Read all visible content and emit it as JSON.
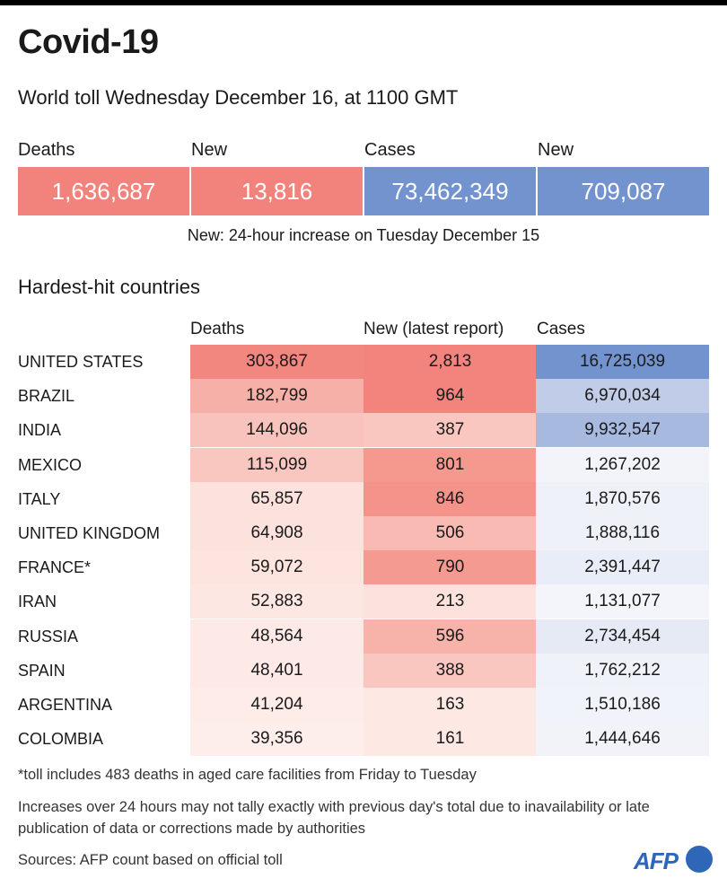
{
  "title": "Covid-19",
  "subtitle": "World toll Wednesday December 16, at 1100 GMT",
  "summary": [
    {
      "label": "Deaths",
      "value": "1,636,687",
      "color": "#f2837c"
    },
    {
      "label": "New",
      "value": "13,816",
      "color": "#f2837c"
    },
    {
      "label": "Cases",
      "value": "73,462,349",
      "color": "#7393cf"
    },
    {
      "label": "New",
      "value": "709,087",
      "color": "#7393cf"
    }
  ],
  "summary_note": "New: 24-hour increase on Tuesday December 15",
  "section_title": "Hardest-hit countries",
  "chart_data": {
    "type": "table",
    "title": "Hardest-hit countries",
    "columns": [
      "Deaths",
      "New (latest report)",
      "Cases"
    ],
    "rows": [
      {
        "country": "UNITED STATES",
        "deaths": "303,867",
        "new": "2,813",
        "cases": "16,725,039",
        "colors": [
          "#f2877f",
          "#f2847d",
          "#7393cf"
        ]
      },
      {
        "country": "BRAZIL",
        "deaths": "182,799",
        "new": "964",
        "cases": "6,970,034",
        "colors": [
          "#f6b0a7",
          "#f2847d",
          "#c1cce9"
        ]
      },
      {
        "country": "INDIA",
        "deaths": "144,096",
        "new": "387",
        "cases": "9,932,547",
        "colors": [
          "#f8c3bc",
          "#f9c7c0",
          "#a8b9e0"
        ]
      },
      {
        "country": "MEXICO",
        "deaths": "115,099",
        "new": "801",
        "cases": "1,267,202",
        "colors": [
          "#f9c7c0",
          "#f5998f",
          "#f2f4fa"
        ]
      },
      {
        "country": "ITALY",
        "deaths": "65,857",
        "new": "846",
        "cases": "1,870,576",
        "colors": [
          "#fce1dc",
          "#f4938a",
          "#eef1f8"
        ]
      },
      {
        "country": "UNITED KINGDOM",
        "deaths": "64,908",
        "new": "506",
        "cases": "1,888,116",
        "colors": [
          "#fce2dd",
          "#f8bab2",
          "#eef1f8"
        ]
      },
      {
        "country": "FRANCE*",
        "deaths": "59,072",
        "new": "790",
        "cases": "2,391,447",
        "colors": [
          "#fde4df",
          "#f59a91",
          "#e9edf7"
        ]
      },
      {
        "country": "IRAN",
        "deaths": "52,883",
        "new": "213",
        "cases": "1,131,077",
        "colors": [
          "#fde7e3",
          "#fce1dc",
          "#f3f5fa"
        ]
      },
      {
        "country": "RUSSIA",
        "deaths": "48,564",
        "new": "596",
        "cases": "2,734,454",
        "colors": [
          "#fde9e5",
          "#f7b3aa",
          "#e5eaf5"
        ]
      },
      {
        "country": "SPAIN",
        "deaths": "48,401",
        "new": "388",
        "cases": "1,762,212",
        "colors": [
          "#fde9e5",
          "#f9c7c0",
          "#eff2f9"
        ]
      },
      {
        "country": "ARGENTINA",
        "deaths": "41,204",
        "new": "163",
        "cases": "1,510,186",
        "colors": [
          "#feece9",
          "#fde8e4",
          "#f0f3f9"
        ]
      },
      {
        "country": "COLOMBIA",
        "deaths": "39,356",
        "new": "161",
        "cases": "1,444,646",
        "colors": [
          "#feeeeb",
          "#fde8e4",
          "#f1f3f9"
        ]
      }
    ]
  },
  "footnotes": [
    "*toll includes 483 deaths in aged care facilities from Friday to Tuesday",
    "Increases over 24 hours may not tally exactly with previous day's total due to inavailability or late publication of data or corrections made by authorities",
    "Sources: AFP count based on official toll"
  ],
  "logo": "AFP"
}
